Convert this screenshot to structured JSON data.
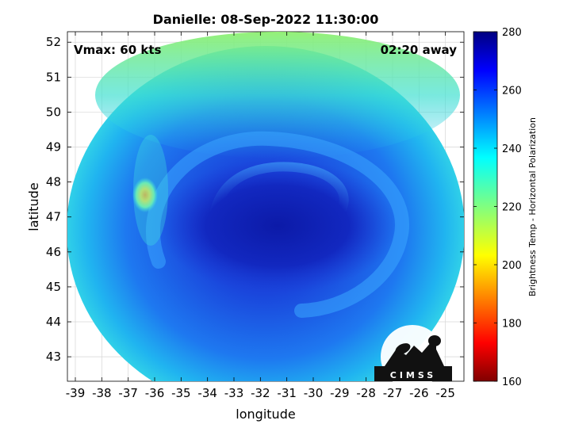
{
  "title": "Danielle: 08-Sep-2022 11:30:00",
  "annotations": {
    "vmax": "Vmax: 60 kts",
    "time_away": "02:20 away"
  },
  "axes": {
    "xlabel": "longitude",
    "ylabel": "latitude",
    "xlim": [
      -39.3,
      -24.3
    ],
    "ylim": [
      42.3,
      52.3
    ],
    "xticks": [
      -39,
      -38,
      -37,
      -36,
      -35,
      -34,
      -33,
      -32,
      -31,
      -30,
      -29,
      -28,
      -27,
      -26,
      -25
    ],
    "yticks": [
      43,
      44,
      45,
      46,
      47,
      48,
      49,
      50,
      51,
      52
    ],
    "grid": true
  },
  "colorbar": {
    "label": "Brightness Temp - Horizontal Polarization",
    "range": [
      160,
      280
    ],
    "ticks": [
      160,
      180,
      200,
      220,
      240,
      260,
      280
    ],
    "colormap": "jet"
  },
  "swath": {
    "center": [
      -31.3,
      47.3
    ],
    "storm_center": [
      -31.3,
      46.9
    ],
    "warm_spot": [
      -36.2,
      47.7
    ],
    "warm_spot_value": 205
  },
  "logo": {
    "text": "CIMSS"
  }
}
